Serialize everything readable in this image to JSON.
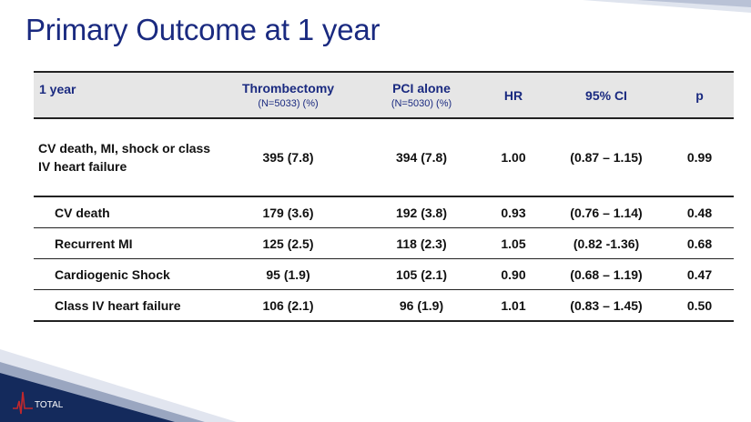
{
  "title": "Primary Outcome at 1 year",
  "table": {
    "header": {
      "label": "1 year",
      "col1": "Thrombectomy",
      "col1_sub": "(N=5033) (%)",
      "col2": "PCI alone",
      "col2_sub": "(N=5030) (%)",
      "col3": "HR",
      "col4": "95% CI",
      "col5": "p"
    },
    "main_row": {
      "label": "CV death, MI, shock or class IV heart failure",
      "thrombectomy": "395 (7.8)",
      "pci": "394 (7.8)",
      "hr": "1.00",
      "ci": "(0.87 – 1.15)",
      "p": "0.99"
    },
    "rows": [
      {
        "label": "CV death",
        "thrombectomy": "179 (3.6)",
        "pci": "192 (3.8)",
        "hr": "0.93",
        "ci": "(0.76 – 1.14)",
        "p": "0.48"
      },
      {
        "label": "Recurrent MI",
        "thrombectomy": "125 (2.5)",
        "pci": "118 (2.3)",
        "hr": "1.05",
        "ci": "(0.82 -1.36)",
        "p": "0.68"
      },
      {
        "label": "Cardiogenic Shock",
        "thrombectomy": "95 (1.9)",
        "pci": "105 (2.1)",
        "hr": "0.90",
        "ci": "(0.68 – 1.19)",
        "p": "0.47"
      },
      {
        "label": "Class IV heart failure",
        "thrombectomy": "106 (2.1)",
        "pci": "96 (1.9)",
        "hr": "1.01",
        "ci": "(0.83 – 1.45)",
        "p": "0.50"
      }
    ]
  },
  "logo": {
    "text": "TOTAL"
  },
  "colors": {
    "title": "#1a2a80",
    "header_bg": "#e6e6e6",
    "accent_navy": "#142a5c",
    "logo_red": "#c0282d"
  }
}
